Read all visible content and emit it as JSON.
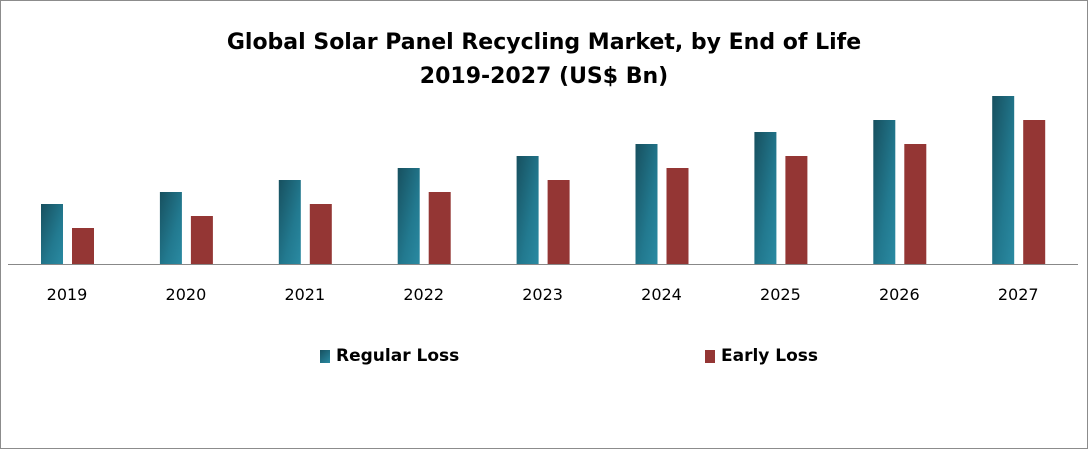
{
  "chart_data": {
    "type": "bar",
    "title": "Global Solar Panel Recycling Market, by End of Life",
    "subtitle": "2019-2027 (US$ Bn)",
    "categories": [
      "2019",
      "2020",
      "2021",
      "2022",
      "2023",
      "2024",
      "2025",
      "2026",
      "2027"
    ],
    "series": [
      {
        "name": "Regular Loss",
        "values": [
          5,
          6,
          7,
          8,
          9,
          10,
          11,
          12,
          14
        ],
        "color": "#1f6f85"
      },
      {
        "name": "Early Loss",
        "values": [
          3,
          4,
          5,
          6,
          7,
          8,
          9,
          10,
          12
        ],
        "color": "#943634"
      }
    ],
    "ylim": [
      0,
      14
    ],
    "grid": false,
    "y_axis_shown": false,
    "legend_position": "bottom"
  }
}
